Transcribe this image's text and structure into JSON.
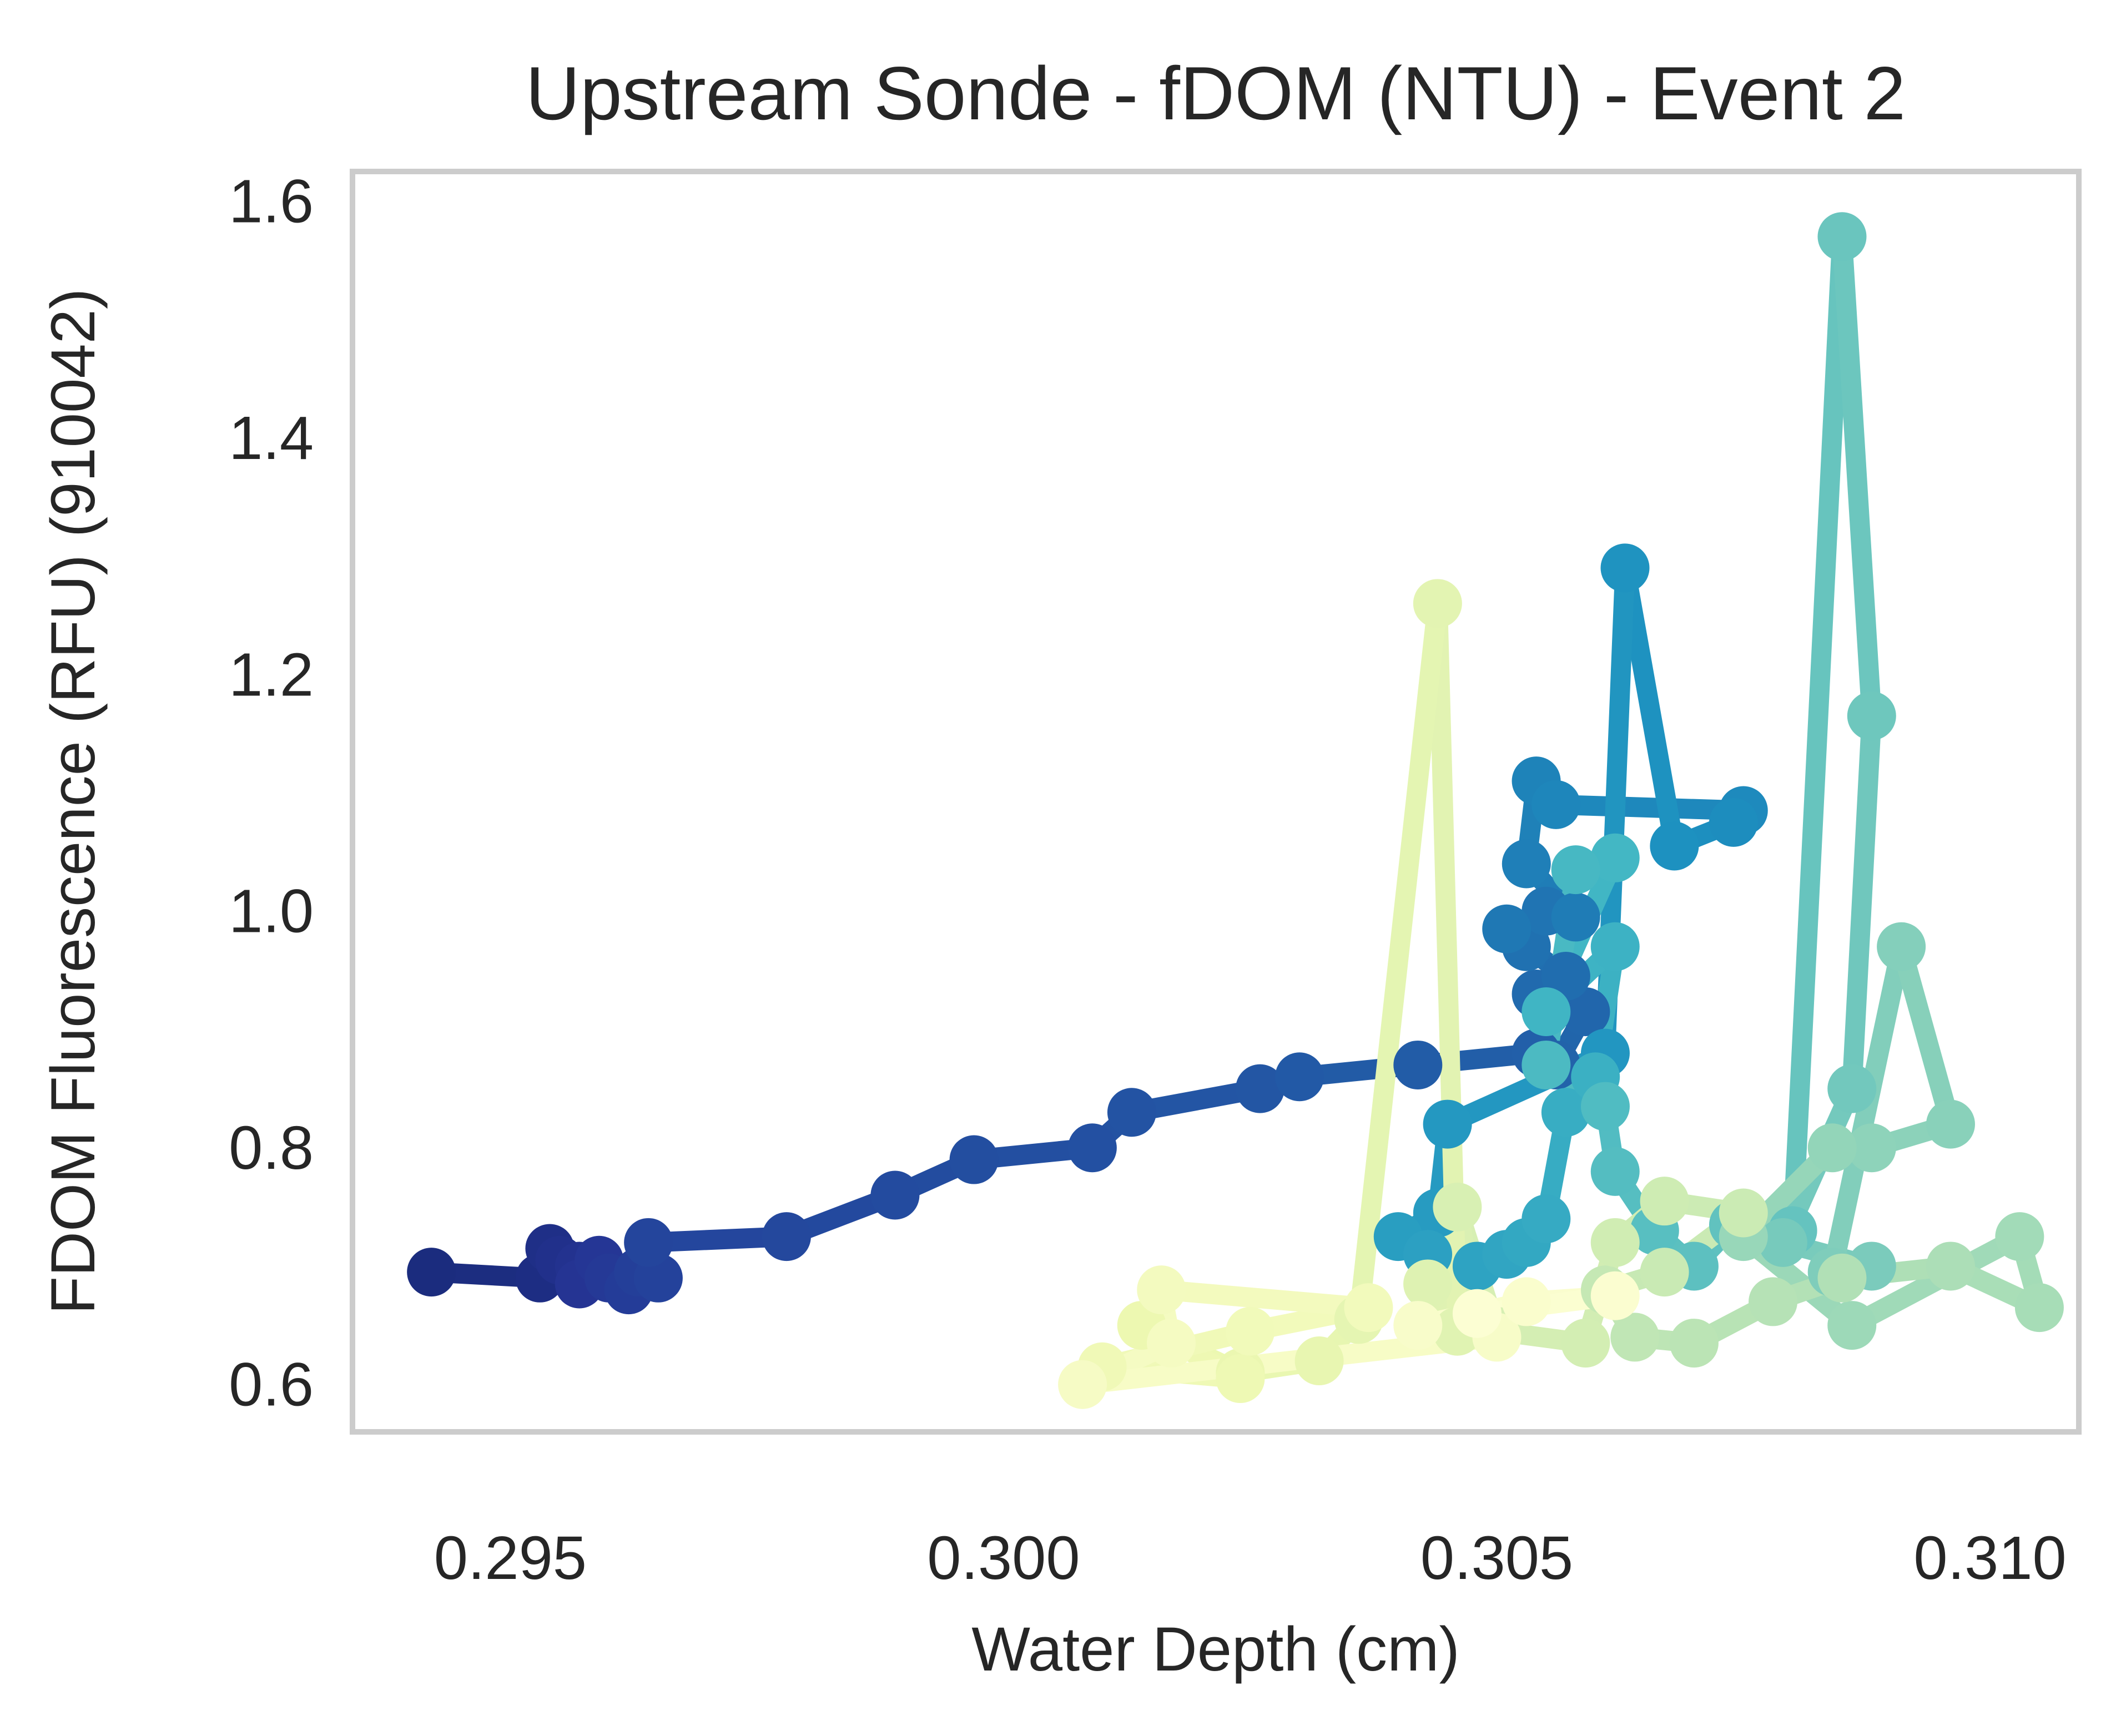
{
  "chart_data": {
    "type": "line",
    "title": "Upstream Sonde - fDOM (NTU) - Event 2",
    "xlabel": "Water Depth (cm)",
    "ylabel": "FDOM Fluorescence (RFU) (910042)",
    "xlim": [
      0.2934,
      0.3109
    ],
    "ylim": [
      0.56,
      1.625
    ],
    "xticks": [
      "0.295",
      "0.300",
      "0.305",
      "0.310"
    ],
    "yticks": [
      "0.6",
      "0.8",
      "1.0",
      "1.2",
      "1.4",
      "1.6"
    ],
    "grid": false,
    "legend": "none",
    "colormap": "YlGnBu_r (color varies along the path)",
    "colors": {
      "start": "#0e1f63",
      "end": "#f9fdd0",
      "frame": "#cccccc",
      "text": "#262626"
    },
    "series": [
      {
        "x": [
          0.2942,
          0.2953,
          0.2954,
          0.2955,
          0.2957,
          0.2957,
          0.2959,
          0.296,
          0.2962,
          0.2963,
          0.2965,
          0.2964,
          0.2978,
          0.2989,
          0.2997,
          0.3009,
          0.3013,
          0.3026,
          0.303,
          0.3042,
          0.3054,
          0.3056,
          0.3059,
          0.3054,
          0.3057,
          0.3053,
          0.3055,
          0.3051,
          0.3058,
          0.3053,
          0.3054,
          0.3056,
          0.3075,
          0.3074,
          0.3068,
          0.3063,
          0.3061,
          0.3045,
          0.3044,
          0.304,
          0.3043,
          0.3048,
          0.3051,
          0.3053,
          0.3055,
          0.3057,
          0.306,
          0.3062,
          0.3055,
          0.3062,
          0.3058,
          0.3055,
          0.3061,
          0.3062,
          0.3066,
          0.307,
          0.3074,
          0.308,
          0.3085,
          0.3088,
          0.3086,
          0.3079,
          0.3088,
          0.3084,
          0.3091,
          0.3096,
          0.3088,
          0.3084,
          0.3075,
          0.3086,
          0.3103,
          0.3105,
          0.3096,
          0.3085,
          0.3078,
          0.307,
          0.3064,
          0.3061,
          0.3067,
          0.3075,
          0.3067,
          0.3062,
          0.3059,
          0.305,
          0.3046,
          0.3048,
          0.3043,
          0.3046,
          0.3044,
          0.3036,
          0.3032,
          0.3024,
          0.3014,
          0.3024,
          0.301,
          0.3025,
          0.3037,
          0.3016,
          0.3017,
          0.3008,
          0.305,
          0.3042,
          0.3053,
          0.3062,
          0.3048
        ],
        "y": [
          0.695,
          0.69,
          0.715,
          0.705,
          0.7,
          0.685,
          0.705,
          0.69,
          0.68,
          0.695,
          0.69,
          0.72,
          0.725,
          0.76,
          0.79,
          0.8,
          0.83,
          0.85,
          0.86,
          0.87,
          0.88,
          0.87,
          0.915,
          0.93,
          0.945,
          0.97,
          1.0,
          0.985,
          0.995,
          1.04,
          1.11,
          1.09,
          1.085,
          1.075,
          1.055,
          1.29,
          0.88,
          0.82,
          0.745,
          0.725,
          0.71,
          0.7,
          0.71,
          0.72,
          0.74,
          0.83,
          0.86,
          0.97,
          0.915,
          1.045,
          1.035,
          0.87,
          0.835,
          0.78,
          0.73,
          0.7,
          0.735,
          0.73,
          1.57,
          1.165,
          0.85,
          0.72,
          0.7,
          0.695,
          0.97,
          0.82,
          0.8,
          0.8,
          0.725,
          0.65,
          0.725,
          0.665,
          0.7,
          0.69,
          0.67,
          0.635,
          0.64,
          0.68,
          0.695,
          0.745,
          0.755,
          0.72,
          0.635,
          0.645,
          0.75,
          0.655,
          0.685,
          0.645,
          1.26,
          0.655,
          0.62,
          0.61,
          0.65,
          0.605,
          0.615,
          0.645,
          0.665,
          0.68,
          0.635,
          0.6,
          0.64,
          0.65,
          0.67,
          0.675,
          0.66
        ]
      }
    ]
  }
}
